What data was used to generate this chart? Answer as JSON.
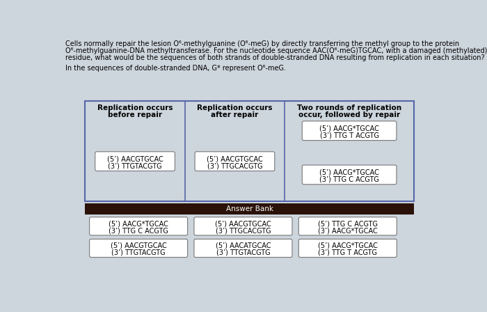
{
  "bg_color": "#cdd5dd",
  "title_lines": [
    "Cells normally repair the lesion O⁶-methylguanine (O⁶-meG) by directly transferring the methyl group to the protein",
    "O⁶-methylguanine-DNA methyltransferase. For the nucleotide sequence AAC(O⁶-meG)TGCAC, with a damaged (methylated) G",
    "residue, what would be the sequences of both strands of double-stranded DNA resulting from replication in each situation?"
  ],
  "subtitle": "In the sequences of double-stranded DNA, G* represent O⁶-meG.",
  "col_headers": [
    "Replication occurs\nbefore repair",
    "Replication occurs\nafter repair",
    "Two rounds of replication\noccur, followed by repair"
  ],
  "col1_box": "(5’) AACGTGCAC\n(3’) TTGTACGTG",
  "col2_box": "(5’) AACGTGCAC\n(3’) TTGCACGTG",
  "col3_box1": "(5’) AACG*TGCAC\n(3’) TTG T ACGTG",
  "col3_box2": "(5’) AACG*TGCAC\n(3’) TTG C ACGTG",
  "answer_bank_label": "Answer Bank",
  "answer_bank_bg": "#2a1208",
  "answer_items": [
    [
      "(5’) AACG*TGCAC\n(3’) TTG C ACGTG",
      "(5’) AACGTGCAC\n(3’) TTGCACGTG",
      "(5’) TTG C ACGTG\n(3’) AACG*TGCAC"
    ],
    [
      "(5’) AACGTGCAC\n(3’) TTGTACGTG",
      "(5’) AACATGCAC\n(3’) TTGTACGTG",
      "(5’) AACG*TGCAC\n(3’) TTG T ACGTG"
    ]
  ],
  "table_border_color": "#5566aa",
  "inner_box_color": "#777777",
  "text_color": "#111111"
}
